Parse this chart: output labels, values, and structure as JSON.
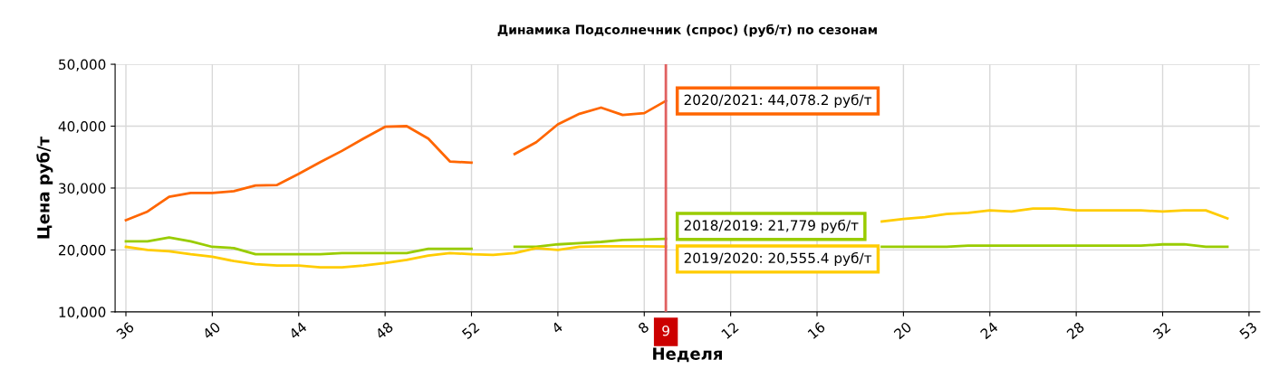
{
  "chart_data": {
    "type": "line",
    "title": "Динамика Подсолнечник (спрос) (руб/т) по сезонам",
    "xlabel": "Неделя",
    "ylabel": "Цена руб/т",
    "categories": [
      "36",
      null,
      null,
      null,
      "40",
      null,
      null,
      null,
      "44",
      null,
      null,
      null,
      "48",
      null,
      null,
      null,
      "52",
      null,
      null,
      null,
      "4",
      null,
      null,
      null,
      "8",
      "9",
      null,
      null,
      "12",
      null,
      null,
      null,
      "16",
      null,
      null,
      null,
      "20",
      null,
      null,
      null,
      "24",
      null,
      null,
      null,
      "28",
      null,
      null,
      null,
      "32",
      null,
      null,
      null,
      "53"
    ],
    "series": [
      {
        "color": "#ff6600",
        "values": [
          24800,
          26200,
          28600,
          29200,
          29200,
          29500,
          30400,
          30500,
          32300,
          34200,
          36000,
          38000,
          39900,
          40000,
          38000,
          34300,
          34100,
          null,
          35500,
          37400,
          40300,
          42000,
          43000,
          41800,
          42100,
          44078.2,
          null,
          null,
          null,
          null,
          null,
          null,
          null,
          null,
          null,
          null,
          null,
          null,
          null,
          null,
          null,
          null,
          null,
          null,
          null,
          null,
          null,
          null,
          null,
          null,
          null,
          null,
          null
        ]
      },
      {
        "color": "#99cc00",
        "values": [
          21400,
          21400,
          22000,
          21400,
          20500,
          20300,
          19300,
          19300,
          19300,
          19300,
          19500,
          19500,
          19500,
          19500,
          20200,
          20200,
          20200,
          null,
          20500,
          20500,
          20900,
          21100,
          21300,
          21600,
          21700,
          21779,
          null,
          null,
          null,
          null,
          null,
          null,
          null,
          null,
          null,
          20500,
          20500,
          20500,
          20500,
          20700,
          20700,
          20700,
          20700,
          20700,
          20700,
          20700,
          20700,
          20700,
          20900,
          20900,
          20500,
          20500,
          null
        ]
      },
      {
        "color": "#ffcc00",
        "values": [
          20500,
          20000,
          19800,
          19300,
          18900,
          18200,
          17700,
          17500,
          17500,
          17200,
          17200,
          17500,
          17900,
          18400,
          19100,
          19500,
          19300,
          19200,
          19500,
          20300,
          20000,
          20500,
          20600,
          20600,
          20600,
          20555.4,
          null,
          null,
          null,
          null,
          null,
          null,
          null,
          null,
          null,
          24600,
          25000,
          25300,
          25800,
          26000,
          26400,
          26200,
          26700,
          26700,
          26400,
          26400,
          26400,
          26400,
          26200,
          26400,
          26400,
          25100,
          null
        ]
      }
    ],
    "ylim": [
      10000,
      50000
    ],
    "yticks": [
      {
        "value": 10000,
        "label": "10,000"
      },
      {
        "value": 20000,
        "label": "20,000"
      },
      {
        "value": 30000,
        "label": "30,000"
      },
      {
        "value": 40000,
        "label": "40,000"
      },
      {
        "value": 50000,
        "label": "50,000"
      }
    ],
    "ref_lines": [
      {
        "axis": "x",
        "value": "9",
        "color": "#e06060"
      }
    ],
    "annotations": [
      {
        "text": "2020/2021: 44,078.2 руб/т",
        "x": "9",
        "y": 44078.2
      },
      {
        "text": "2018/2019: 21,779 руб/т",
        "x": "9",
        "y": 21779
      },
      {
        "text": "2019/2020: 20,555.4 руб/т",
        "x": "9",
        "y": 20555.4
      }
    ],
    "grid": true,
    "legend": false,
    "marker": "none",
    "line_style": "solid"
  }
}
